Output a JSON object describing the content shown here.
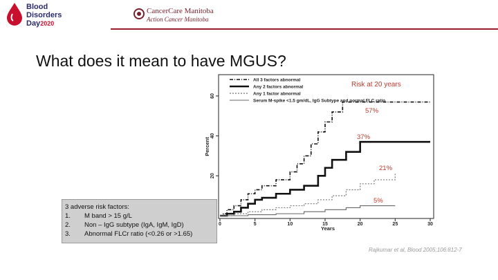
{
  "header": {
    "logo_line1": "Blood",
    "logo_line2": "Disorders",
    "logo_line3": "Day",
    "logo_year": "2020",
    "partner_name": "CancerCare Manitoba",
    "partner_sub": "Action Cancer Manitoba",
    "accent_color": "#9b1b2a"
  },
  "slide": {
    "title": "What does it mean to have MGUS?",
    "risk_box": {
      "heading": "3 adverse risk factors:",
      "items": [
        {
          "num": "1.",
          "text": "M band > 15 g/L"
        },
        {
          "num": "2.",
          "text": "Non – IgG subtype (IgA, IgM, IgD)"
        },
        {
          "num": "3.",
          "text": "Abnormal FLCr ratio  (<0.26 or >1.65)"
        }
      ]
    },
    "citation": "Rajkumar et al, Blood 2005;106:812-7"
  },
  "chart_data": {
    "type": "line",
    "title": "",
    "xlabel": "Years",
    "ylabel": "Percent",
    "xlim": [
      0,
      30
    ],
    "ylim": [
      0,
      70
    ],
    "xticks": [
      "0",
      "5",
      "10",
      "15",
      "20",
      "25",
      "30"
    ],
    "yticks": [
      "20",
      "40",
      "60"
    ],
    "grid": false,
    "legend_position": "top-left",
    "annotation_title": "Risk at 20 years",
    "annotation_color": "#c0392b",
    "series": [
      {
        "name": "All 3 factors abnormal",
        "end_label": "57%",
        "style": "dash-dot",
        "x": [
          0,
          0.5,
          1,
          2,
          3,
          4,
          5,
          6,
          8,
          10,
          11,
          12,
          13,
          14,
          15,
          16,
          17.5,
          30
        ],
        "y": [
          0,
          1,
          3,
          5,
          8,
          11,
          13,
          15,
          18,
          22,
          26,
          30,
          36,
          42,
          47,
          52,
          57,
          57
        ]
      },
      {
        "name": "Any 2 factors abnormal",
        "end_label": "37%",
        "style": "solid-bold",
        "x": [
          0,
          1,
          2,
          3,
          4,
          5,
          6,
          8,
          10,
          12,
          14,
          15,
          16,
          18,
          20,
          30
        ],
        "y": [
          0,
          1,
          2,
          4,
          6,
          8,
          9,
          11,
          13,
          15,
          20,
          24,
          28,
          32,
          37,
          37
        ]
      },
      {
        "name": "Any 1 factor abnormal",
        "end_label": "21%",
        "style": "dotted",
        "x": [
          0,
          2,
          4,
          6,
          8,
          10,
          12,
          14,
          16,
          18,
          20,
          22,
          25
        ],
        "y": [
          0,
          1,
          2,
          3,
          4,
          5,
          6,
          8,
          10,
          13,
          16,
          18,
          21
        ]
      },
      {
        "name": "Serum M-spike <1.5 gm/dL, IgG Subtype and normal FLC ratio",
        "end_label": "5%",
        "style": "solid-gray",
        "x": [
          0,
          4,
          8,
          12,
          15,
          18,
          20,
          22,
          25
        ],
        "y": [
          0,
          0.5,
          1,
          2,
          3,
          4,
          5,
          5,
          5
        ]
      }
    ]
  }
}
